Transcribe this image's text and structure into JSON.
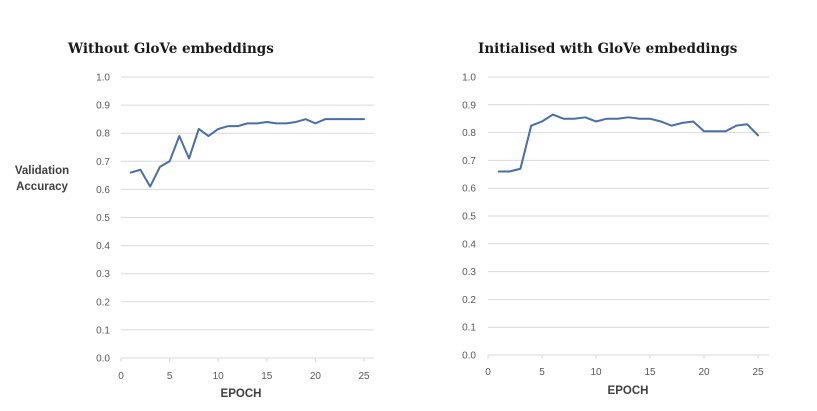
{
  "chart_data": [
    {
      "type": "line",
      "title": "Without GloVe embeddings",
      "ylabel": "Validation Accuracy",
      "xlabel": "EPOCH",
      "ylim": [
        0,
        1.0
      ],
      "xlim": [
        0,
        26
      ],
      "yticks": [
        "0.0",
        "0.1",
        "0.2",
        "0.3",
        "0.4",
        "0.5",
        "0.6",
        "0.7",
        "0.8",
        "0.9",
        "1.0"
      ],
      "xticks": [
        "0",
        "5",
        "10",
        "15",
        "20",
        "25"
      ],
      "grid": true,
      "line_color": "#4a6fa5",
      "series": [
        {
          "x": [
            1,
            2,
            3,
            4,
            5,
            6,
            7,
            8,
            9,
            10,
            11,
            12,
            13,
            14,
            15,
            16,
            17,
            18,
            19,
            20,
            21,
            22,
            23,
            24,
            25
          ],
          "values": [
            0.66,
            0.67,
            0.61,
            0.68,
            0.7,
            0.79,
            0.71,
            0.815,
            0.79,
            0.815,
            0.825,
            0.825,
            0.835,
            0.835,
            0.84,
            0.835,
            0.835,
            0.84,
            0.85,
            0.835,
            0.85,
            0.85,
            0.85,
            0.85,
            0.85
          ]
        }
      ]
    },
    {
      "type": "line",
      "title": "Initialised with GloVe embeddings",
      "ylabel": "",
      "xlabel": "EPOCH",
      "ylim": [
        0,
        1.0
      ],
      "xlim": [
        0,
        26
      ],
      "yticks": [
        "0.0",
        "0.1",
        "0.2",
        "0.3",
        "0.4",
        "0.5",
        "0.6",
        "0.7",
        "0.8",
        "0.9",
        "1.0"
      ],
      "xticks": [
        "0",
        "5",
        "10",
        "15",
        "20",
        "25"
      ],
      "grid": true,
      "line_color": "#4a6fa5",
      "series": [
        {
          "x": [
            1,
            2,
            3,
            4,
            5,
            6,
            7,
            8,
            9,
            10,
            11,
            12,
            13,
            14,
            15,
            16,
            17,
            18,
            19,
            20,
            21,
            22,
            23,
            24,
            25
          ],
          "values": [
            0.66,
            0.66,
            0.67,
            0.825,
            0.84,
            0.865,
            0.85,
            0.85,
            0.855,
            0.84,
            0.85,
            0.85,
            0.855,
            0.85,
            0.85,
            0.84,
            0.825,
            0.835,
            0.84,
            0.805,
            0.805,
            0.805,
            0.825,
            0.83,
            0.79
          ]
        }
      ]
    }
  ]
}
